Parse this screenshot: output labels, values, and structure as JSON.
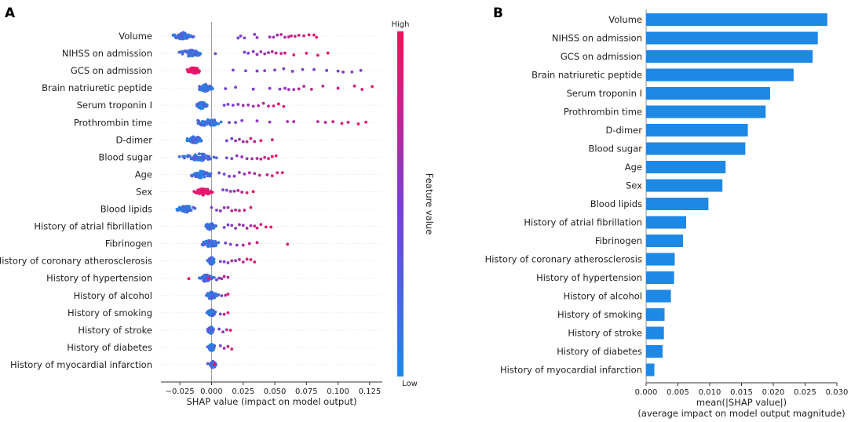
{
  "chart_data": [
    {
      "type": "scatter",
      "subtype": "shap-beeswarm",
      "panel_label": "A",
      "title": "",
      "xlabel": "SHAP value (impact on model output)",
      "xlim": [
        -0.04,
        0.135
      ],
      "xticks": [
        -0.025,
        0.0,
        0.025,
        0.05,
        0.075,
        0.1,
        0.125
      ],
      "xtick_labels": [
        "−0.025",
        "0.000",
        "0.025",
        "0.050",
        "0.075",
        "0.100",
        "0.125"
      ],
      "colorbar": {
        "label": "Feature value",
        "high_label": "High",
        "low_label": "Low",
        "low_color": "#1e88e5",
        "high_color": "#ff0d57"
      },
      "features": [
        {
          "name": "Volume",
          "neg_cluster": [
            -0.032,
            -0.013
          ],
          "high_values": [
            0.021,
            0.023,
            0.026,
            0.034,
            0.036,
            0.046,
            0.049,
            0.052,
            0.055,
            0.058,
            0.061,
            0.063,
            0.066,
            0.069,
            0.073,
            0.077,
            0.081,
            0.083
          ]
        },
        {
          "name": "NIHSS on admission",
          "neg_cluster": [
            -0.028,
            -0.005
          ],
          "high_values": [
            0.003,
            0.026,
            0.029,
            0.033,
            0.036,
            0.039,
            0.042,
            0.045,
            0.048,
            0.051,
            0.055,
            0.058,
            0.065,
            0.075,
            0.084,
            0.092
          ]
        },
        {
          "name": "GCS on admission",
          "neg_cluster": [
            -0.02,
            -0.008
          ],
          "high_values": [
            0.017,
            0.027,
            0.036,
            0.042,
            0.05,
            0.057,
            0.064,
            0.072,
            0.081,
            0.091,
            0.1,
            0.104,
            0.111,
            0.118
          ]
        },
        {
          "name": "Brain natriuretic peptide",
          "neg_cluster": [
            -0.012,
            0.002
          ],
          "high_values": [
            0.011,
            0.019,
            0.033,
            0.046,
            0.054,
            0.058,
            0.061,
            0.065,
            0.069,
            0.073,
            0.079,
            0.088,
            0.1,
            0.113,
            0.119,
            0.127
          ]
        },
        {
          "name": "Serum troponin I",
          "neg_cluster": [
            -0.013,
            -0.003
          ],
          "high_values": [
            0.01,
            0.013,
            0.017,
            0.021,
            0.025,
            0.029,
            0.033,
            0.037,
            0.041,
            0.045,
            0.049,
            0.053,
            0.057
          ]
        },
        {
          "name": "Prothrombin time",
          "neg_cluster": [
            -0.018,
            0.012
          ],
          "high_values": [
            0.014,
            0.019,
            0.024,
            0.036,
            0.046,
            0.06,
            0.065,
            0.084,
            0.09,
            0.096,
            0.103,
            0.108,
            0.116,
            0.122
          ]
        },
        {
          "name": "D-dimer",
          "neg_cluster": [
            -0.022,
            -0.005
          ],
          "high_values": [
            0.012,
            0.016,
            0.019,
            0.022,
            0.025,
            0.028,
            0.031,
            0.034,
            0.039,
            0.048
          ]
        },
        {
          "name": "Blood sugar",
          "neg_cluster": [
            -0.028,
            0.01
          ],
          "high_values": [
            0.012,
            0.016,
            0.02,
            0.024,
            0.028,
            0.032,
            0.036,
            0.039,
            0.042,
            0.045,
            0.048,
            0.051
          ]
        },
        {
          "name": "Age",
          "neg_cluster": [
            -0.02,
            0.003
          ],
          "high_values": [
            0.006,
            0.01,
            0.014,
            0.018,
            0.022,
            0.026,
            0.03,
            0.034,
            0.038,
            0.044,
            0.048,
            0.052,
            0.056
          ]
        },
        {
          "name": "Sex",
          "neg_cluster": [
            -0.015,
            0.002
          ],
          "high_values": [
            0.009,
            0.012,
            0.015,
            0.018,
            0.021,
            0.024,
            0.028,
            0.033
          ]
        },
        {
          "name": "Blood lipids",
          "neg_cluster": [
            -0.03,
            -0.01
          ],
          "high_values": [
            0.0,
            0.004,
            0.007,
            0.01,
            0.013,
            0.016,
            0.019,
            0.022,
            0.026,
            0.031
          ]
        },
        {
          "name": "History of atrial fibrillation",
          "neg_cluster": [
            -0.006,
            0.004
          ],
          "high_values": [
            0.01,
            0.013,
            0.016,
            0.019,
            0.022,
            0.025,
            0.028,
            0.031,
            0.034,
            0.036,
            0.039,
            0.043,
            0.047
          ]
        },
        {
          "name": "Fibrinogen",
          "neg_cluster": [
            -0.01,
            0.008
          ],
          "high_values": [
            0.011,
            0.015,
            0.02,
            0.025,
            0.03,
            0.036,
            0.06
          ]
        },
        {
          "name": "History of coronary atherosclerosis",
          "neg_cluster": [
            -0.004,
            0.004
          ],
          "high_values": [
            0.007,
            0.01,
            0.013,
            0.016,
            0.019,
            0.022,
            0.025,
            0.028,
            0.031,
            0.034
          ]
        },
        {
          "name": "History of hypertension",
          "neg_cluster": [
            -0.012,
            0.003
          ],
          "high_values": [
            0.004,
            0.006,
            0.008,
            0.01,
            0.013,
            -0.002,
            -0.018
          ]
        },
        {
          "name": "History of alcohol",
          "neg_cluster": [
            -0.006,
            0.006
          ],
          "high_values": [
            0.008,
            0.011,
            0.013
          ]
        },
        {
          "name": "History of smoking",
          "neg_cluster": [
            -0.004,
            0.004
          ],
          "high_values": [
            0.007,
            0.01,
            0.013
          ]
        },
        {
          "name": "History of stroke",
          "neg_cluster": [
            -0.004,
            0.003
          ],
          "high_values": [
            0.006,
            0.009,
            0.012,
            0.015
          ]
        },
        {
          "name": "History of diabetes",
          "neg_cluster": [
            -0.004,
            0.004
          ],
          "high_values": [
            0.007,
            0.01,
            0.013,
            0.016
          ]
        },
        {
          "name": "History of myocardial infarction",
          "neg_cluster": [
            -0.002,
            0.004
          ],
          "high_values": [
            -0.003,
            0.002
          ]
        }
      ]
    },
    {
      "type": "bar",
      "orientation": "horizontal",
      "panel_label": "B",
      "title": "",
      "xlabel": "mean(|SHAP value|)",
      "xlabel_sub": "(average impact on model output magnitude)",
      "xlim": [
        0,
        0.03
      ],
      "xticks": [
        0.0,
        0.005,
        0.01,
        0.015,
        0.02,
        0.025,
        0.03
      ],
      "xtick_labels": [
        "0.000",
        "0.005",
        "0.010",
        "0.015",
        "0.020",
        "0.025",
        "0.030"
      ],
      "bar_color": "#1e88e5",
      "categories": [
        "Volume",
        "NIHSS on admission",
        "GCS on admission",
        "Brain natriuretic peptide",
        "Serum troponin I",
        "Prothrombin time",
        "D-dimer",
        "Blood sugar",
        "Age",
        "Sex",
        "Blood lipids",
        "History of atrial fibrillation",
        "Fibrinogen",
        "History of coronary atherosclerosis",
        "History of hypertension",
        "History of alcohol",
        "History of smoking",
        "History of stroke",
        "History of diabetes",
        "History of myocardial infarction"
      ],
      "values": [
        0.0285,
        0.027,
        0.0262,
        0.0232,
        0.0195,
        0.0188,
        0.016,
        0.0156,
        0.0125,
        0.012,
        0.0098,
        0.0063,
        0.0058,
        0.0045,
        0.0044,
        0.0039,
        0.0029,
        0.0028,
        0.0026,
        0.0013
      ]
    }
  ]
}
